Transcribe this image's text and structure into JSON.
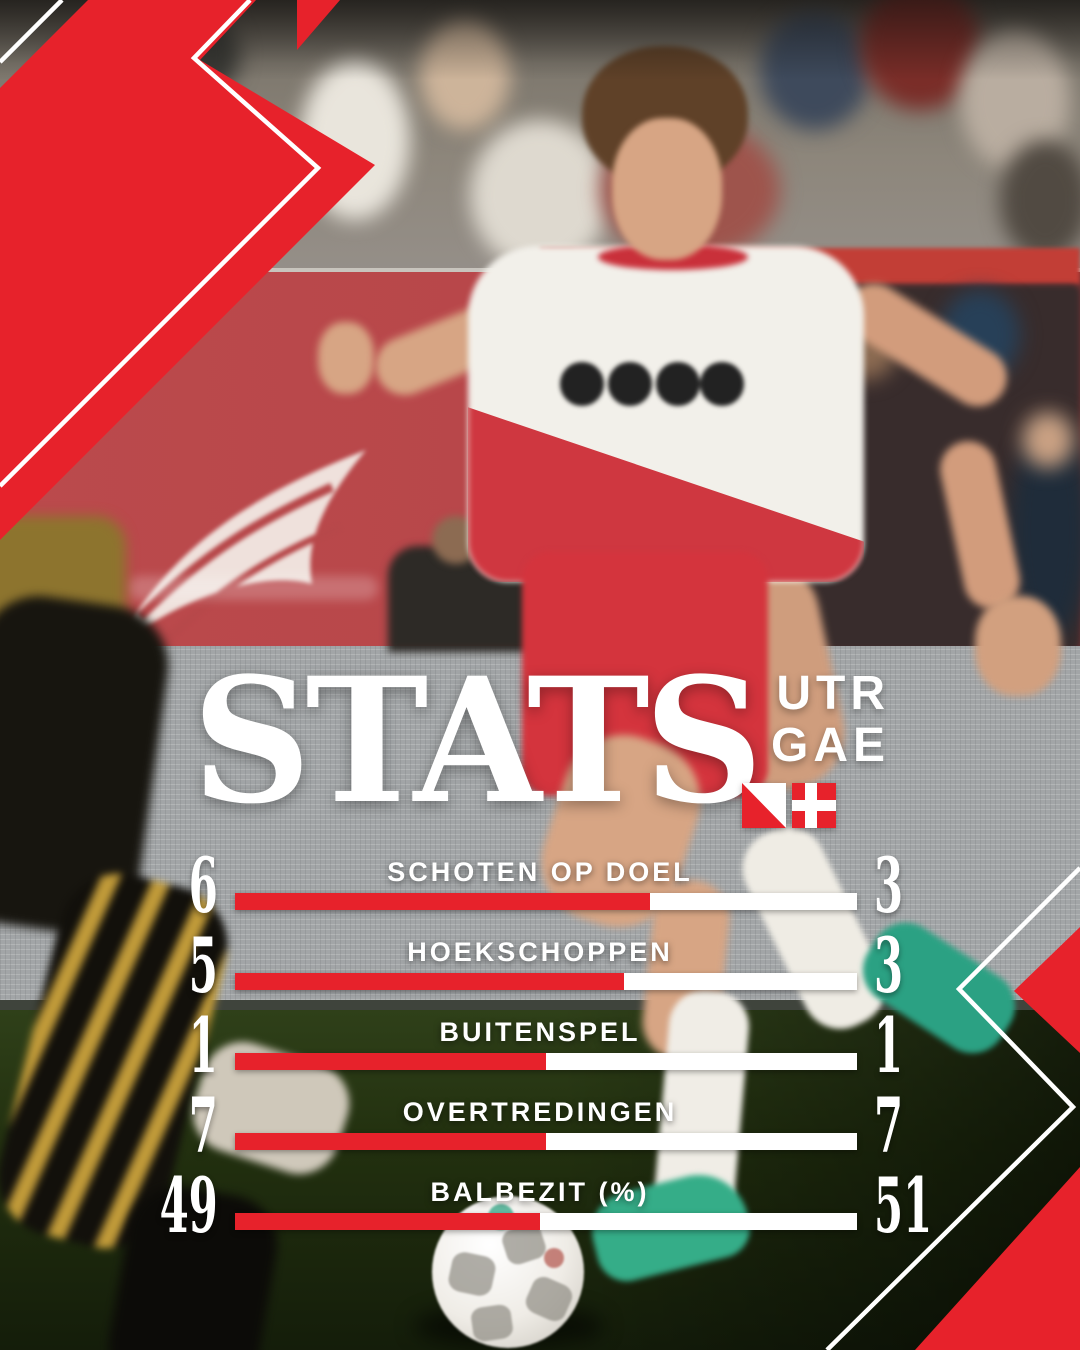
{
  "header": {
    "title": "STATS",
    "home_team_code": "UTR",
    "away_team_code": "GAE",
    "home_flag": "fc-utrecht-diagonal-red-white-flag",
    "away_flag": "go-ahead-eagles-red-white-cross-flag"
  },
  "colors": {
    "accent_red": "#e7222b",
    "bar_white": "#ffffff",
    "text_white": "#ffffff"
  },
  "stats": [
    {
      "label": "SCHOTEN OP DOEL",
      "home": 6,
      "away": 3
    },
    {
      "label": "HOEKSCHOPPEN",
      "home": 5,
      "away": 3
    },
    {
      "label": "BUITENSPEL",
      "home": 1,
      "away": 1
    },
    {
      "label": "OVERTREDINGEN",
      "home": 7,
      "away": 7
    },
    {
      "label": "BALBEZIT (%)",
      "home": 49,
      "away": 51
    }
  ],
  "chart_data": {
    "type": "bar",
    "title": "STATS",
    "orientation": "horizontal",
    "style": "paired share bars: red segment = UTR value share, white segment = GAE value share",
    "categories": [
      "SCHOTEN OP DOEL",
      "HOEKSCHOPPEN",
      "BUITENSPEL",
      "OVERTREDINGEN",
      "BALBEZIT (%)"
    ],
    "series": [
      {
        "name": "UTR",
        "color": "#e7222b",
        "values": [
          6,
          5,
          1,
          7,
          49
        ]
      },
      {
        "name": "GAE",
        "color": "#ffffff",
        "values": [
          3,
          3,
          1,
          7,
          51
        ]
      }
    ],
    "value_labels": "left = UTR value, right = GAE value",
    "legend_position": "top-right"
  }
}
